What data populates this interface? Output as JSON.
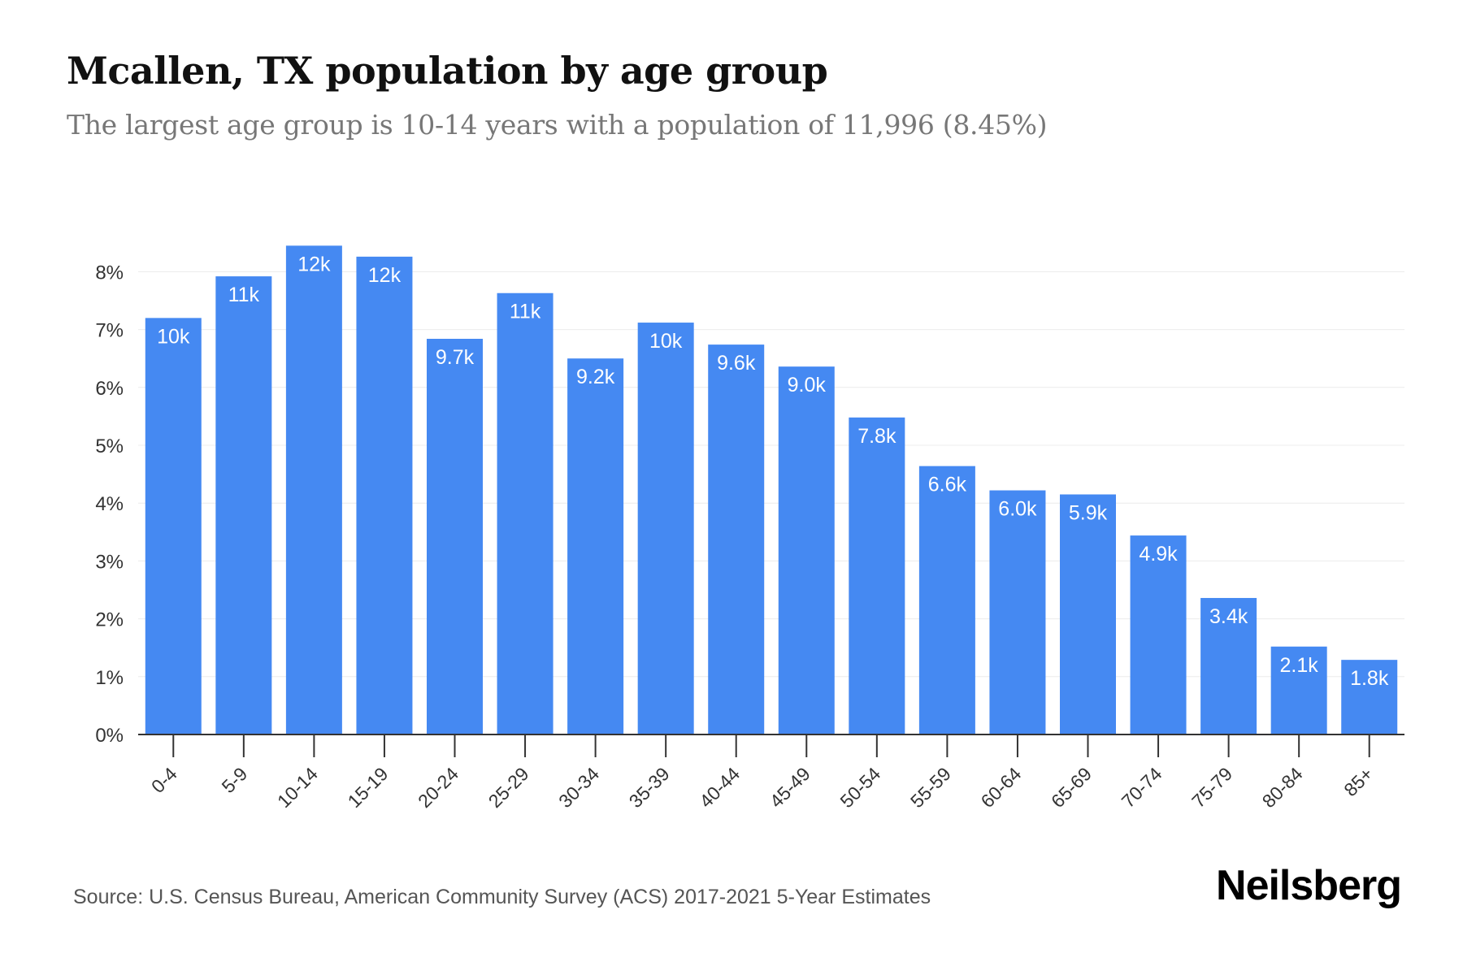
{
  "title": "Mcallen, TX population by age group",
  "subtitle": "The largest age group is 10-14 years with a population of 11,996 (8.45%)",
  "source": "Source: U.S. Census Bureau, American Community Survey (ACS) 2017-2021 5-Year Estimates",
  "brand": "Neilsberg",
  "colors": {
    "bar": "#4589F2",
    "grid": "#ECECEC",
    "axis": "#333333",
    "tick_text": "#333333",
    "data_label": "#FFFFFF"
  },
  "chart_data": {
    "type": "bar",
    "categories": [
      "0-4",
      "5-9",
      "10-14",
      "15-19",
      "20-24",
      "25-29",
      "30-34",
      "35-39",
      "40-44",
      "45-49",
      "50-54",
      "55-59",
      "60-64",
      "65-69",
      "70-74",
      "75-79",
      "80-84",
      "85+"
    ],
    "values": [
      7.2,
      7.92,
      8.45,
      8.26,
      6.84,
      7.63,
      6.5,
      7.12,
      6.74,
      6.36,
      5.48,
      4.64,
      4.22,
      4.15,
      3.44,
      2.36,
      1.52,
      1.29
    ],
    "data_labels": [
      "10k",
      "11k",
      "12k",
      "12k",
      "9.7k",
      "11k",
      "9.2k",
      "10k",
      "9.6k",
      "9.0k",
      "7.8k",
      "6.6k",
      "6.0k",
      "5.9k",
      "4.9k",
      "3.4k",
      "2.1k",
      "1.8k"
    ],
    "yticks": [
      "0%",
      "1%",
      "2%",
      "3%",
      "4%",
      "5%",
      "6%",
      "7%",
      "8%"
    ],
    "ylim": [
      0,
      8
    ],
    "grid": true,
    "xlabel": "",
    "ylabel": ""
  }
}
